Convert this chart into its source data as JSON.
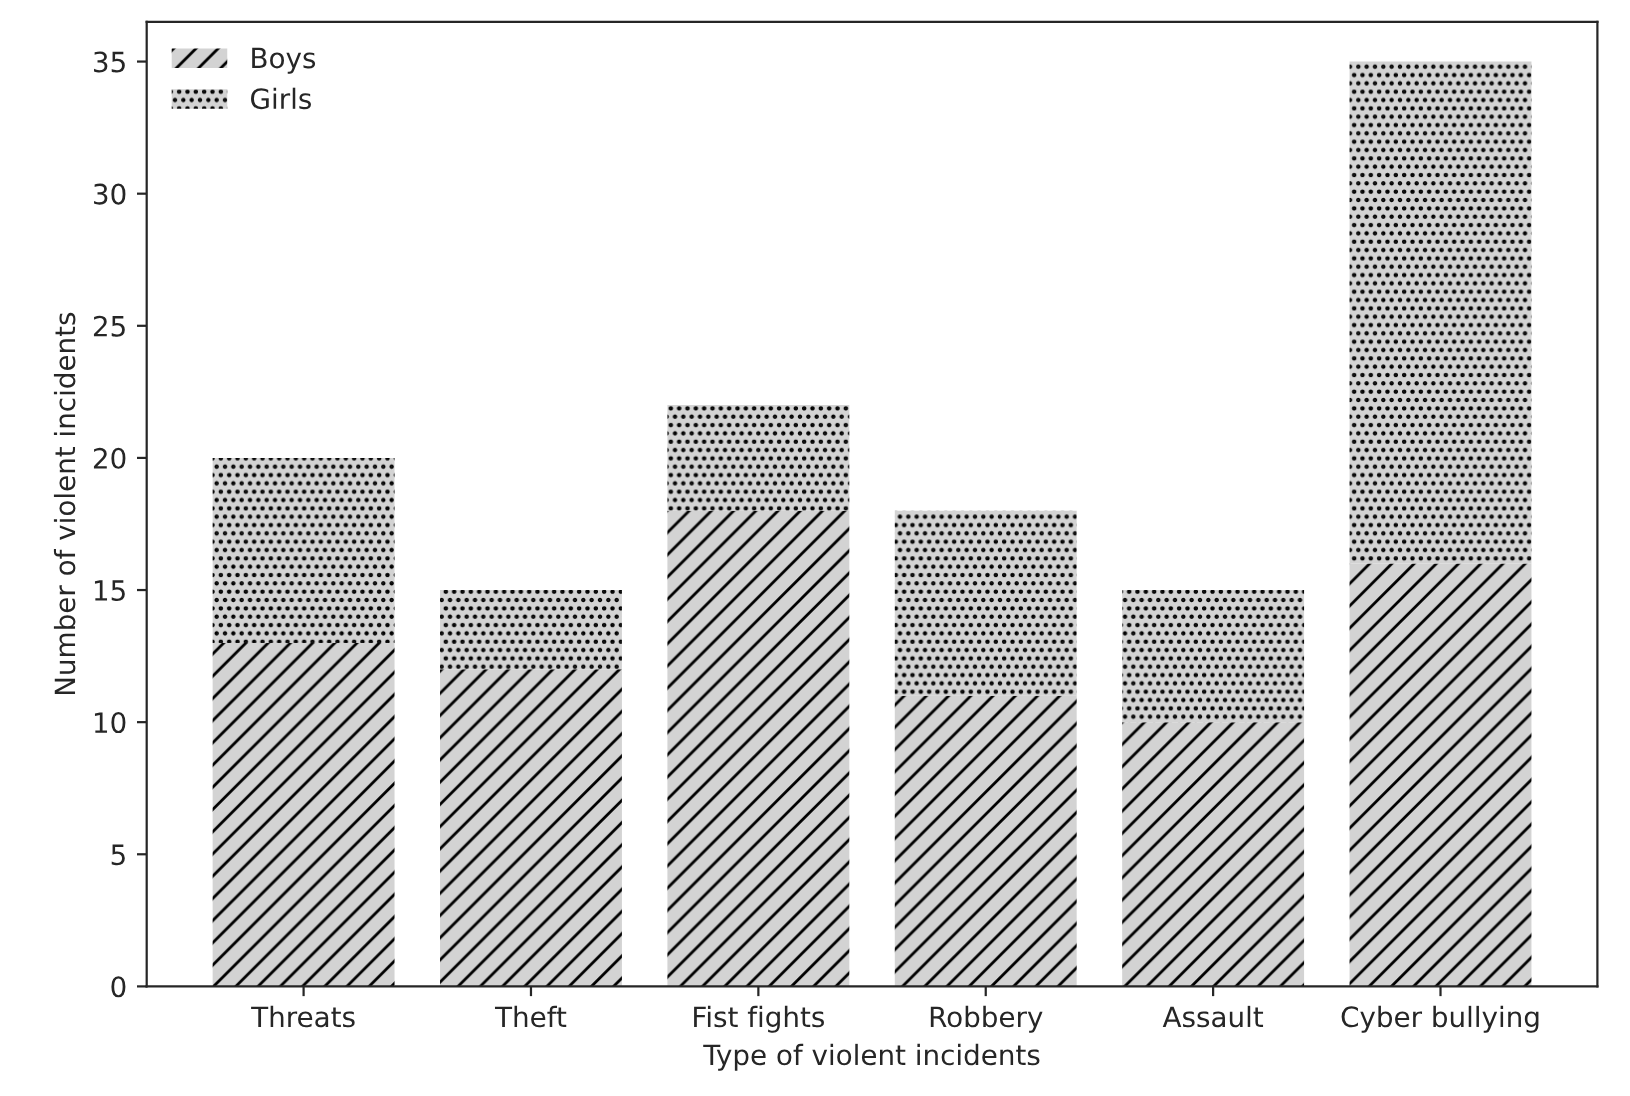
{
  "chart_data": {
    "type": "bar",
    "stacked": true,
    "xlabel": "Type of violent incidents",
    "ylabel": "Number of violent incidents",
    "categories": [
      "Threats",
      "Theft",
      "Fist fights",
      "Robbery",
      "Assault",
      "Cyber bullying"
    ],
    "series": [
      {
        "name": "Boys",
        "color": "#d3d3d3",
        "values": [
          13,
          12,
          18,
          11,
          10,
          16
        ]
      },
      {
        "name": "Girls",
        "color": "#d3d3d3",
        "values": [
          7,
          3,
          4,
          7,
          5,
          19
        ]
      }
    ],
    "ylim": [
      0,
      36.5
    ],
    "yticks": [
      0,
      5,
      10,
      15,
      20,
      25,
      30,
      35
    ],
    "grid": false,
    "legend": "top left"
  }
}
